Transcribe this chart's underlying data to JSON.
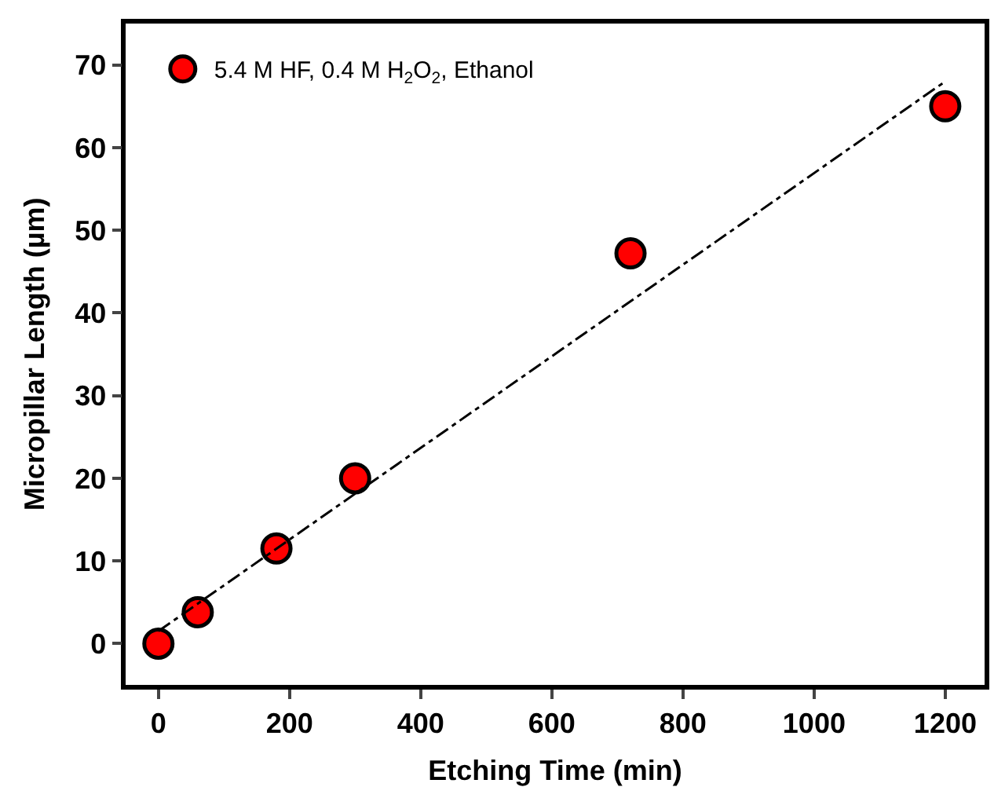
{
  "chart_data": {
    "type": "scatter",
    "xlabel": "Etching Time (min)",
    "ylabel": "Micropillar Length (µm)",
    "xlim": [
      -50,
      1260
    ],
    "xticks": [
      0,
      200,
      400,
      600,
      800,
      1000,
      1200
    ],
    "ylim": [
      -5,
      75
    ],
    "yticks": [
      0,
      10,
      20,
      30,
      40,
      50,
      60,
      70
    ],
    "legend": "top left",
    "series": [
      {
        "name": "5.4 M HF, 0.4 M H$_{2}$O$_{2}$, Ethanol",
        "color": "#ff0000",
        "marker": "circle",
        "x": [
          0,
          60,
          180,
          300,
          720,
          1200
        ],
        "values": [
          0,
          3.8,
          11.5,
          20,
          47.2,
          65
        ]
      },
      {
        "type": "line",
        "color": "#000000",
        "line_style": "dashdot",
        "x": [
          0,
          1200
        ],
        "values": [
          1.5,
          68
        ]
      }
    ]
  }
}
